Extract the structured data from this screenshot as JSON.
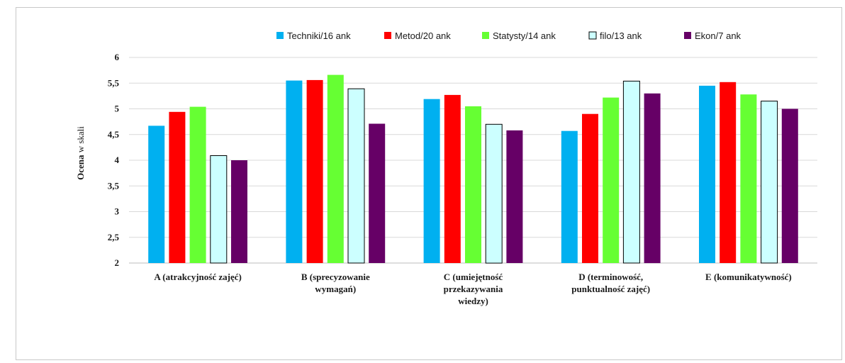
{
  "chart_data": {
    "type": "bar",
    "title": "",
    "ylabel": {
      "bold_part": "Ocena",
      "rest": " w skali"
    },
    "xlabel": "",
    "ylim": [
      2,
      6
    ],
    "y_ticks": [
      "2",
      "2,5",
      "3",
      "3,5",
      "4",
      "4,5",
      "5",
      "5,5",
      "6"
    ],
    "y_tick_values": [
      2,
      2.5,
      3,
      3.5,
      4,
      4.5,
      5,
      5.5,
      6
    ],
    "grid": true,
    "legend_position": "top",
    "categories": [
      [
        "A (atrakcyjność zajęć)"
      ],
      [
        "B (sprecyzowanie",
        "wymagań)"
      ],
      [
        "C (umiejętność",
        "przekazywania",
        "wiedzy)"
      ],
      [
        "D (terminowość,",
        "punktualność zajęć)"
      ],
      [
        "E (komunikatywność)"
      ]
    ],
    "series": [
      {
        "name": "Techniki/16 ank",
        "color": "#00b0f0",
        "outline": false,
        "values": [
          4.67,
          5.55,
          5.19,
          4.57,
          5.45
        ]
      },
      {
        "name": "Metod/20 ank",
        "color": "#ff0000",
        "outline": false,
        "values": [
          4.94,
          5.56,
          5.27,
          4.9,
          5.52
        ]
      },
      {
        "name": "Statysty/14 ank",
        "color": "#66ff33",
        "outline": false,
        "values": [
          5.04,
          5.66,
          5.05,
          5.22,
          5.28
        ]
      },
      {
        "name": "filo/13 ank",
        "color": "#ccffff",
        "outline": true,
        "values": [
          4.09,
          5.39,
          4.7,
          5.54,
          5.15
        ]
      },
      {
        "name": "Ekon/7 ank",
        "color": "#660066",
        "outline": false,
        "values": [
          4.0,
          4.71,
          4.58,
          5.3,
          5.0
        ]
      }
    ]
  }
}
